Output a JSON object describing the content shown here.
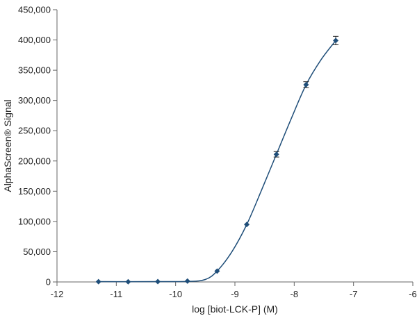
{
  "chart_data": {
    "type": "scatter",
    "xlabel": "log [biot-LCK-P] (M)",
    "ylabel": "AlphaScreen® Signal",
    "xlim": [
      -12,
      -6
    ],
    "ylim": [
      0,
      450000
    ],
    "x_ticks": [
      -12,
      -11,
      -10,
      -9,
      -8,
      -7,
      -6
    ],
    "x_tick_labels": [
      "-12",
      "-11",
      "-10",
      "-9",
      "-8",
      "-7",
      "-6"
    ],
    "y_ticks": [
      0,
      50000,
      100000,
      150000,
      200000,
      250000,
      300000,
      350000,
      400000,
      450000
    ],
    "y_tick_labels": [
      "0",
      "50,000",
      "100,000",
      "150,000",
      "200,000",
      "250,000",
      "300,000",
      "350,000",
      "400,000",
      "450,000"
    ],
    "grid": false,
    "legend": "none",
    "series": [
      {
        "marker": "diamond",
        "color": "#1f4e79",
        "points": [
          {
            "x": -11.3,
            "y": 500,
            "err": 0
          },
          {
            "x": -10.8,
            "y": 300,
            "err": 0
          },
          {
            "x": -10.3,
            "y": 600,
            "err": 0
          },
          {
            "x": -9.8,
            "y": 1500,
            "err": 0
          },
          {
            "x": -9.3,
            "y": 18000,
            "err": 0
          },
          {
            "x": -8.8,
            "y": 95000,
            "err": 0
          },
          {
            "x": -8.3,
            "y": 211000,
            "err": 4500
          },
          {
            "x": -7.8,
            "y": 326000,
            "err": 5000
          },
          {
            "x": -7.3,
            "y": 399000,
            "err": 7000
          }
        ],
        "fit_curve": [
          [
            -11.3,
            500
          ],
          [
            -10.8,
            400
          ],
          [
            -10.3,
            600
          ],
          [
            -9.8,
            800
          ],
          [
            -9.5,
            4000
          ],
          [
            -9.3,
            18000
          ],
          [
            -9.05,
            50000
          ],
          [
            -8.8,
            95000
          ],
          [
            -8.55,
            152000
          ],
          [
            -8.3,
            211000
          ],
          [
            -8.05,
            270000
          ],
          [
            -7.8,
            326000
          ],
          [
            -7.55,
            367000
          ],
          [
            -7.3,
            399000
          ]
        ]
      }
    ]
  }
}
